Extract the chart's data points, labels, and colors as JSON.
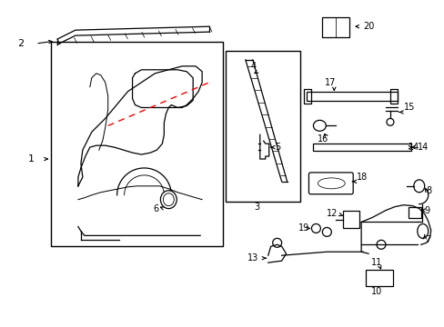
{
  "background_color": "#ffffff",
  "fig_width": 4.89,
  "fig_height": 3.6,
  "dpi": 100,
  "lc": "#000000",
  "rc": "#ff0000"
}
